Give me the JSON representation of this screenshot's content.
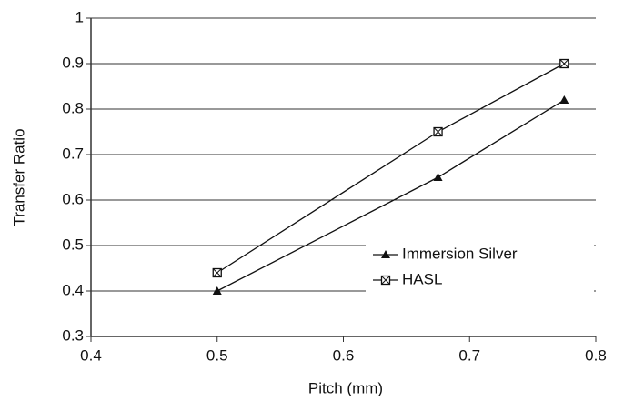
{
  "chart_data": {
    "type": "line",
    "x_label": "Pitch (mm)",
    "y_label": "Transfer Ratio",
    "x": [
      0.5,
      0.675,
      0.775
    ],
    "series": [
      {
        "name": "Immersion Silver",
        "color": "#111111",
        "marker": "triangle",
        "values": [
          0.4,
          0.65,
          0.82
        ]
      },
      {
        "name": "HASL",
        "color": "#111111",
        "marker": "square-x",
        "values": [
          0.44,
          0.75,
          0.9
        ]
      }
    ],
    "xlim": [
      0.4,
      0.8
    ],
    "xticks": [
      0.4,
      0.5,
      0.6,
      0.7,
      0.8
    ],
    "ylim": [
      0.3,
      1
    ],
    "yticks": [
      0.3,
      0.4,
      0.5,
      0.6,
      0.7,
      0.8,
      0.9,
      1
    ],
    "grid": true,
    "legend": "lower right"
  }
}
